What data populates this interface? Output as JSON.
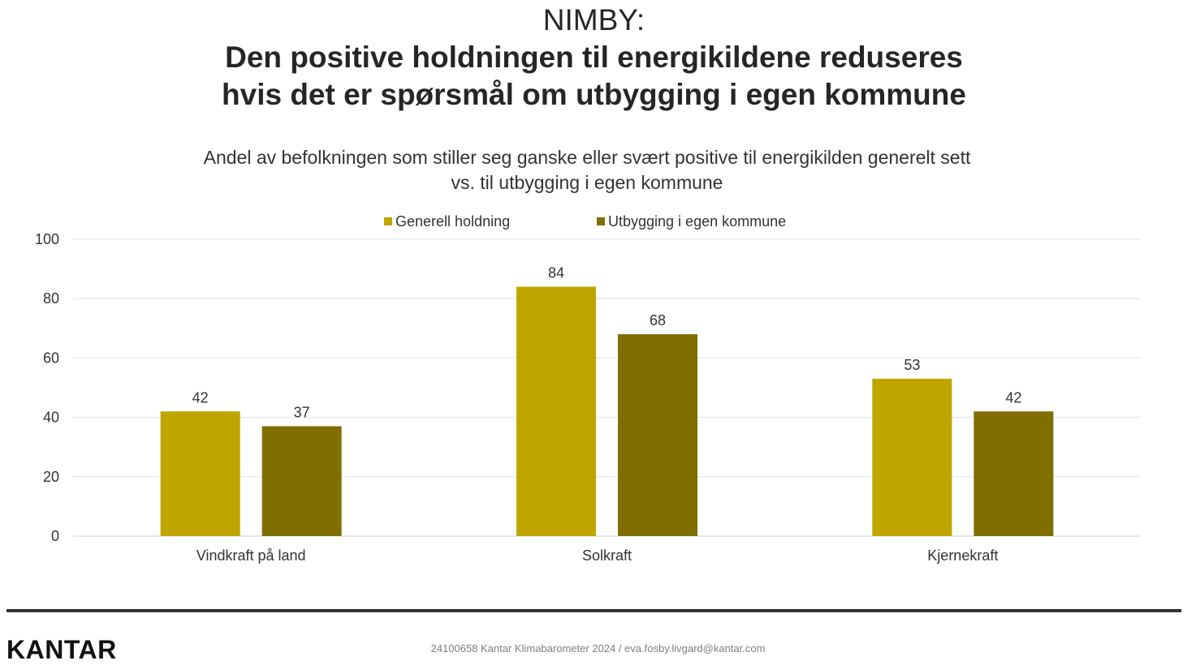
{
  "title": {
    "line1": "NIMBY:",
    "line2": "Den positive holdningen til energikildene reduseres",
    "line3": "hvis det er spørsmål om utbygging i egen kommune"
  },
  "subtitle": {
    "line1": "Andel av befolkningen som stiller seg ganske eller svært positive til energikilden generelt sett",
    "line2": "vs. til utbygging i egen kommune"
  },
  "chart_data": {
    "type": "bar",
    "categories": [
      "Vindkraft på land",
      "Solkraft",
      "Kjernekraft"
    ],
    "series": [
      {
        "name": "Generell holdning",
        "values": [
          42,
          84,
          53
        ],
        "color": "#BFA500"
      },
      {
        "name": "Utbygging i egen kommune",
        "values": [
          37,
          68,
          42
        ],
        "color": "#806E00"
      }
    ],
    "ylim": [
      0,
      100
    ],
    "yticks": [
      "0",
      "20",
      "40",
      "60",
      "80",
      "100"
    ],
    "grid": true,
    "legend": "top-center",
    "data_labels": true
  },
  "footer": {
    "logo": "KANTAR",
    "text": "24100658 Kantar Klimabarometer 2024 / eva.fosby.livgard@kantar.com"
  }
}
